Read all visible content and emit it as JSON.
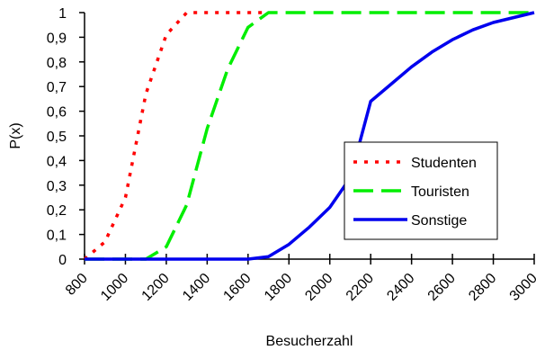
{
  "chart_data": {
    "type": "line",
    "xlabel": "Besucherzahl",
    "ylabel": "P(x)",
    "xlim": [
      800,
      3000
    ],
    "ylim": [
      0,
      1
    ],
    "x_ticks": [
      800,
      1000,
      1200,
      1400,
      1600,
      1800,
      2000,
      2200,
      2400,
      2600,
      2800,
      3000
    ],
    "x_tick_labels": [
      "800",
      "1000",
      "1200",
      "1400",
      "1600",
      "1800",
      "2000",
      "2200",
      "2400",
      "2600",
      "2800",
      "3000"
    ],
    "y_ticks": [
      0,
      0.1,
      0.2,
      0.3,
      0.4,
      0.5,
      0.6,
      0.7,
      0.8,
      0.9,
      1
    ],
    "y_tick_labels": [
      "0",
      "0,1",
      "0,2",
      "0,3",
      "0,4",
      "0,5",
      "0,6",
      "0,7",
      "0,8",
      "0,9",
      "1"
    ],
    "grid": false,
    "legend_position": "right",
    "series": [
      {
        "name": "Studenten",
        "color": "#ff0000",
        "style": "dotted",
        "x": [
          800,
          900,
          1000,
          1100,
          1200,
          1300,
          1400,
          1500,
          1700
        ],
        "y": [
          0,
          0.07,
          0.25,
          0.67,
          0.91,
          1,
          1,
          1,
          1
        ]
      },
      {
        "name": "Touristen",
        "color": "#00ee00",
        "style": "dashed",
        "x": [
          800,
          1000,
          1100,
          1200,
          1300,
          1400,
          1500,
          1600,
          1700,
          3000
        ],
        "y": [
          0,
          0,
          0,
          0.05,
          0.22,
          0.53,
          0.77,
          0.94,
          1,
          1
        ]
      },
      {
        "name": "Sonstige",
        "color": "#0000ee",
        "style": "solid",
        "x": [
          800,
          1100,
          1200,
          1300,
          1400,
          1500,
          1600,
          1700,
          1800,
          1900,
          2000,
          2100,
          2200,
          2300,
          2400,
          2500,
          2600,
          2700,
          2800,
          2900,
          3000
        ],
        "y": [
          0,
          0,
          0,
          0,
          0,
          0,
          0,
          0.01,
          0.06,
          0.13,
          0.21,
          0.33,
          0.64,
          0.71,
          0.78,
          0.84,
          0.89,
          0.93,
          0.96,
          0.98,
          1
        ]
      }
    ]
  }
}
